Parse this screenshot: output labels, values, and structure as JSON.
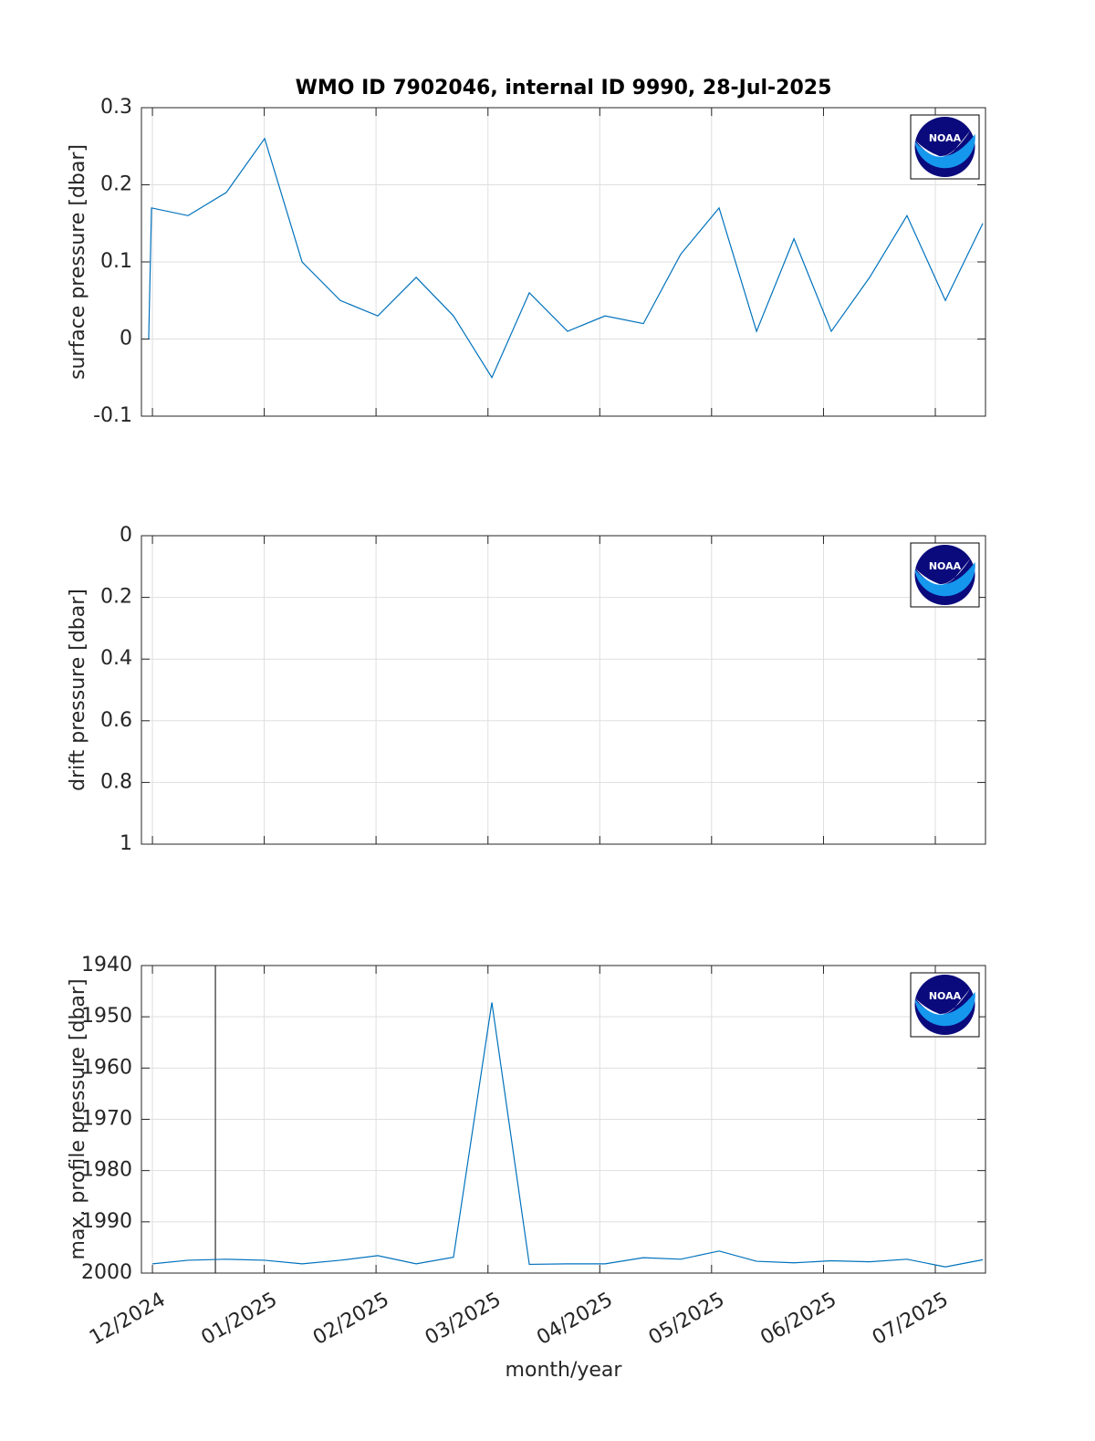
{
  "logo": "NOAA",
  "chart_data": [
    {
      "type": "line",
      "title": "WMO ID 7902046, internal ID 9990, 28-Jul-2025",
      "ylabel": "surface pressure [dbar]",
      "x": [
        2024.9139,
        2024.916,
        2024.9432,
        2024.9717,
        2025.0003,
        2025.0282,
        2025.0567,
        2025.0846,
        2025.1132,
        2025.141,
        2025.1696,
        2025.1975,
        2025.226,
        2025.2539,
        2025.2825,
        2025.3103,
        2025.3389,
        2025.3668,
        2025.3947,
        2025.4225,
        2025.4511,
        2025.4789,
        2025.5075,
        2025.5354
      ],
      "series": [
        {
          "color": "#0072bd",
          "values": [
            0,
            0.17,
            0.16,
            0.19,
            0.26,
            0.1,
            0.05,
            0.03,
            0.08,
            0.03,
            -0.05,
            0.06,
            0.01,
            0.03,
            0.02,
            0.11,
            0.17,
            0.01,
            0.13,
            0.01,
            0.08,
            0.16,
            0.05,
            0.15
          ]
        }
      ],
      "xlim": [
        2024.9085,
        2025.5374
      ],
      "xticks": [
        2024.9167,
        2025.0,
        2025.0833,
        2025.1667,
        2025.25,
        2025.3333,
        2025.4167,
        2025.5
      ],
      "ylim": [
        -0.1,
        0.3
      ],
      "yticks": [
        -0.1,
        0,
        0.1,
        0.2,
        0.3
      ],
      "y_reversed": false,
      "grid": true
    },
    {
      "type": "line",
      "ylabel": "drift pressure [dbar]",
      "xlim": [
        2024.9085,
        2025.5374
      ],
      "xticks": [
        2024.9167,
        2025.0,
        2025.0833,
        2025.1667,
        2025.25,
        2025.3333,
        2025.4167,
        2025.5
      ],
      "ylim": [
        0,
        1
      ],
      "yticks": [
        0,
        0.2,
        0.4,
        0.6,
        0.8,
        1
      ],
      "y_reversed": true,
      "grid": true
    },
    {
      "type": "line",
      "ylabel": "max. profile pressure [dbar]",
      "xlabel": "month/year",
      "x": [
        2024.9167,
        2024.9432,
        2024.9717,
        2025.0003,
        2025.0282,
        2025.0567,
        2025.0846,
        2025.1132,
        2025.141,
        2025.1696,
        2025.1975,
        2025.226,
        2025.2539,
        2025.2825,
        2025.3103,
        2025.3389,
        2025.3668,
        2025.3947,
        2025.4225,
        2025.4511,
        2025.4789,
        2025.5075,
        2025.5354
      ],
      "series": [
        {
          "color": "#0072bd",
          "values": [
            1998.2,
            1997.5,
            1997.3,
            1997.5,
            1998.2,
            1997.5,
            1996.6,
            1998.2,
            1996.9,
            1947.2,
            1998.3,
            1998.2,
            1998.2,
            1997.0,
            1997.3,
            1995.7,
            1997.7,
            1998.0,
            1997.6,
            1997.8,
            1997.3,
            1998.8,
            1997.4
          ]
        }
      ],
      "vline": {
        "x": 2024.9636,
        "color": "#000000"
      },
      "xlim": [
        2024.9085,
        2025.5374
      ],
      "xticks": [
        {
          "value": 2024.9167,
          "label": "12/2024"
        },
        {
          "value": 2025.0,
          "label": "01/2025"
        },
        {
          "value": 2025.0833,
          "label": "02/2025"
        },
        {
          "value": 2025.1667,
          "label": "03/2025"
        },
        {
          "value": 2025.25,
          "label": "04/2025"
        },
        {
          "value": 2025.3333,
          "label": "05/2025"
        },
        {
          "value": 2025.4167,
          "label": "06/2025"
        },
        {
          "value": 2025.5,
          "label": "07/2025"
        }
      ],
      "ylim": [
        1940,
        2000
      ],
      "yticks": [
        1940,
        1950,
        1960,
        1970,
        1980,
        1990,
        2000
      ],
      "y_reversed": true,
      "grid": true
    }
  ]
}
